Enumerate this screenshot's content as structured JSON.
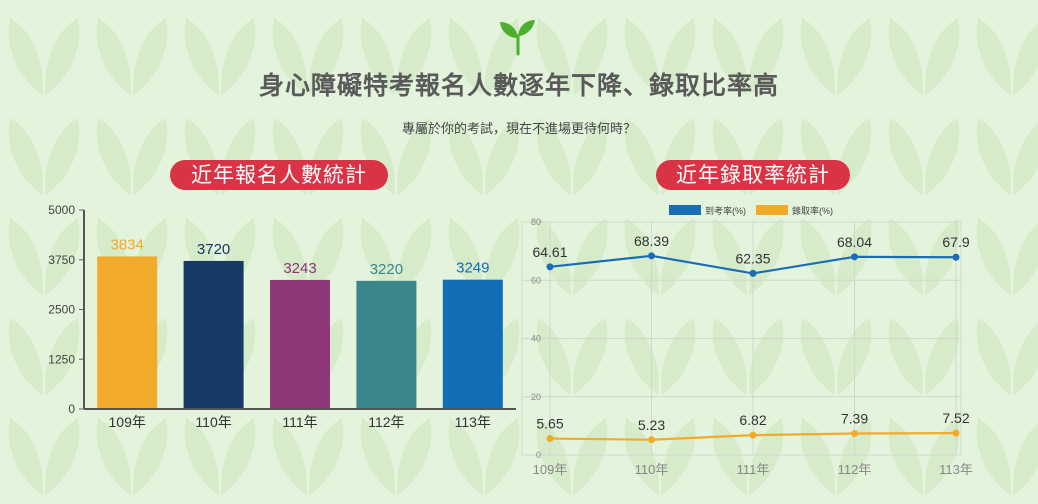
{
  "header": {
    "title": "身心障礙特考報名人數逐年下降、錄取比率高",
    "subtitle": "專屬於你的考試，現在不進場更待何時？"
  },
  "colors": {
    "background": "#e3f3dc",
    "pill": "#d93445",
    "sprout": "#4caf2e"
  },
  "icons": {
    "logo": "sprout-icon"
  },
  "chart_data": [
    {
      "type": "bar",
      "title": "近年報名人數統計",
      "categories": [
        "109年",
        "110年",
        "111年",
        "112年",
        "113年"
      ],
      "values": [
        3834,
        3720,
        3243,
        3220,
        3249
      ],
      "value_labels": [
        "3834",
        "3720",
        "3243",
        "3220",
        "3249"
      ],
      "bar_colors": [
        "#f2aa2b",
        "#163a63",
        "#8e3778",
        "#39878a",
        "#126db7"
      ],
      "yticks": [
        "5000",
        "3750",
        "2500",
        "1250",
        "0"
      ],
      "ylim": [
        0,
        5000
      ],
      "grid": false
    },
    {
      "type": "line",
      "title": "近年錄取率統計",
      "categories": [
        "109年",
        "110年",
        "111年",
        "112年",
        "113年"
      ],
      "series": [
        {
          "name": "到考率(%)",
          "color": "#1a6cb4",
          "values": [
            64.61,
            68.39,
            62.35,
            68.04,
            67.9
          ],
          "labels": [
            "64.61",
            "68.39",
            "62.35",
            "68.04",
            "67.9"
          ]
        },
        {
          "name": "錄取率(%)",
          "color": "#f2aa2b",
          "values": [
            5.65,
            5.23,
            6.82,
            7.39,
            7.52
          ],
          "labels": [
            "5.65",
            "5.23",
            "6.82",
            "7.39",
            "7.52"
          ]
        }
      ],
      "yticks": [
        "80",
        "60",
        "40",
        "20",
        "0"
      ],
      "ylim": [
        0,
        80
      ],
      "grid": true,
      "legend": "top"
    }
  ]
}
